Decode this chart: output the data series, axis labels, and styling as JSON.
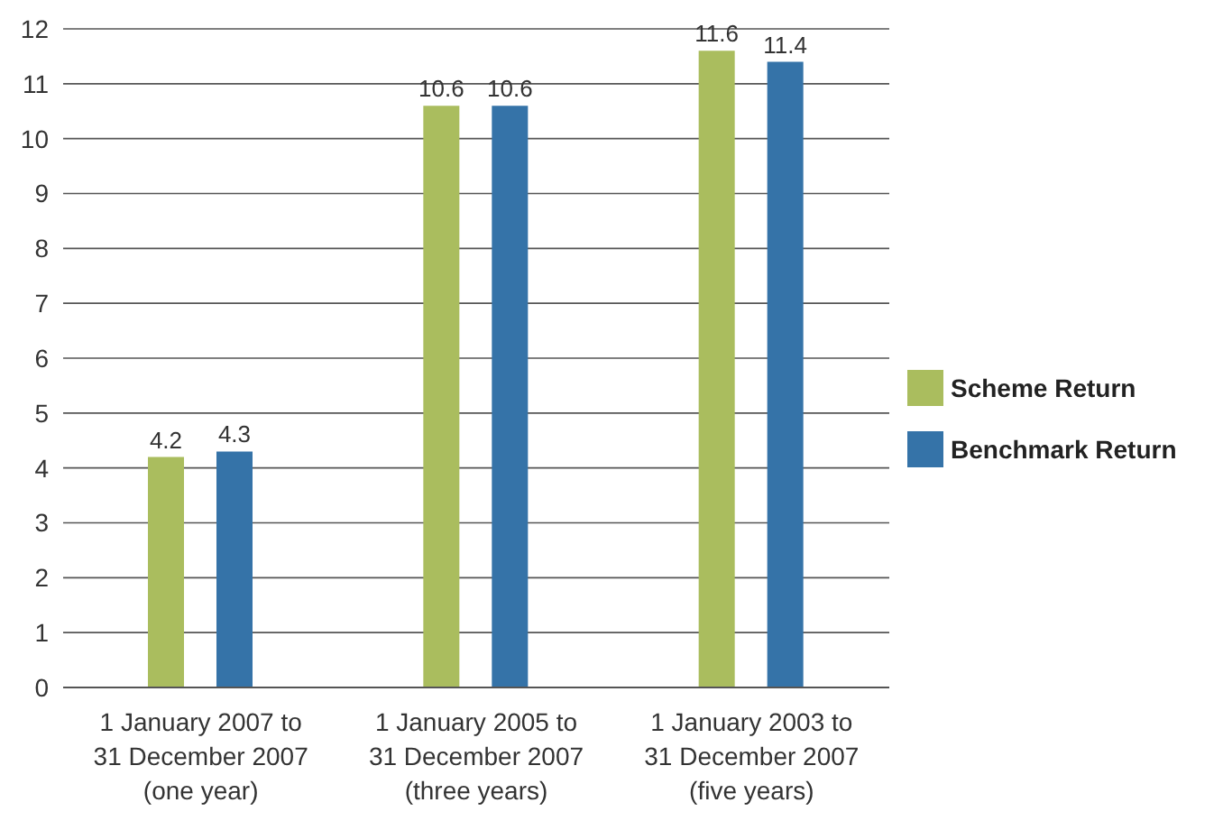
{
  "chart_data": {
    "type": "bar",
    "categories": [
      "1 January 2007 to\n31 December 2007\n(one year)",
      "1 January 2005 to\n31 December 2007\n(three years)",
      "1 January 2003 to\n31 December 2007\n(five years)"
    ],
    "series": [
      {
        "name": "Scheme Return",
        "color": "#aabd5e",
        "values": [
          4.2,
          10.6,
          11.6
        ]
      },
      {
        "name": "Benchmark Return",
        "color": "#3573a8",
        "values": [
          4.3,
          10.6,
          11.4
        ]
      }
    ],
    "ylim": [
      0,
      12
    ],
    "yticks": [
      0,
      1,
      2,
      3,
      4,
      5,
      6,
      7,
      8,
      9,
      10,
      11,
      12
    ],
    "grid": "y",
    "legend": "right",
    "data_labels": true
  }
}
